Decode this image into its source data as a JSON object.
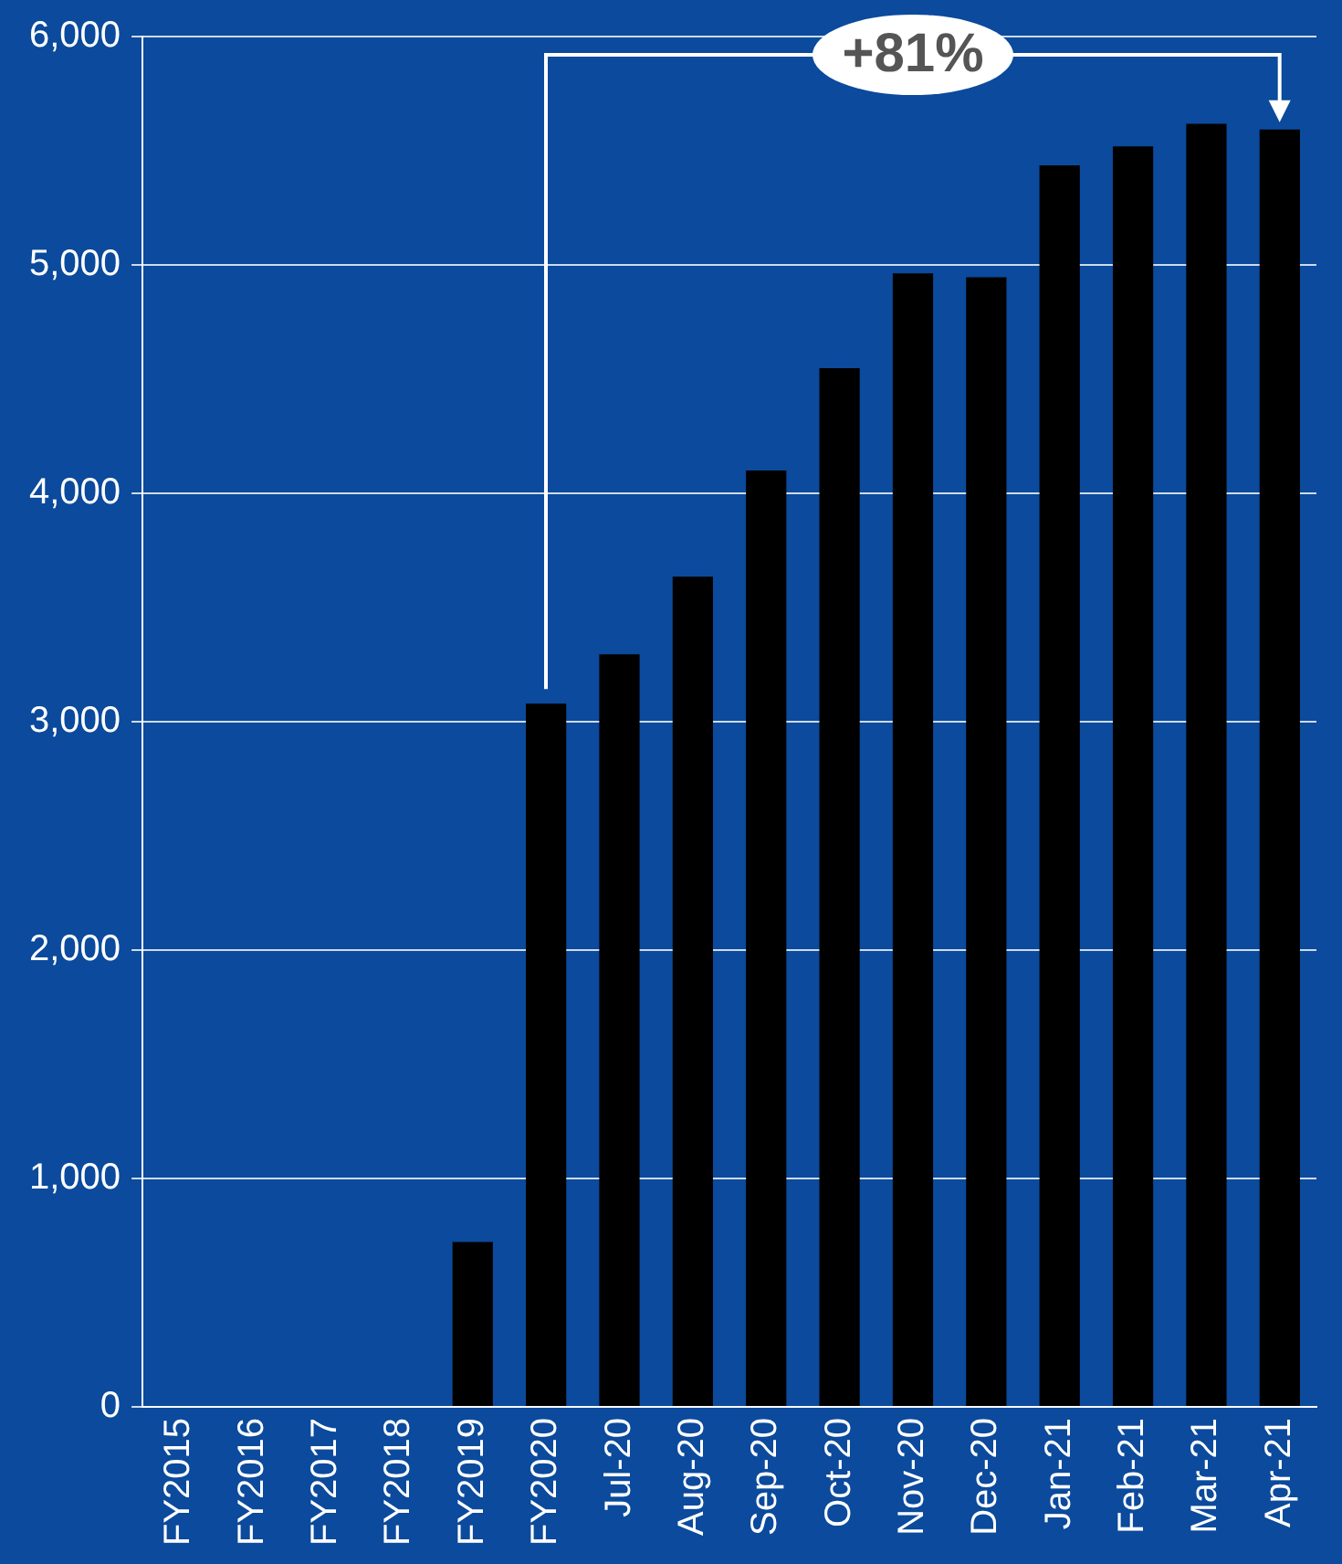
{
  "chart_data": {
    "type": "bar",
    "categories": [
      "FY2015",
      "FY2016",
      "FY2017",
      "FY2018",
      "FY2019",
      "FY2020",
      "Jul-20",
      "Aug-20",
      "Sep-20",
      "Oct-20",
      "Nov-20",
      "Dec-20",
      "Jan-21",
      "Feb-21",
      "Mar-21",
      "Apr-21"
    ],
    "values": [
      0,
      0,
      0,
      0,
      722,
      3079,
      3295,
      3635,
      4100,
      4548,
      4963,
      4946,
      5436,
      5519,
      5618,
      5593
    ],
    "color": "#000000",
    "ylim": [
      0,
      6000
    ],
    "yticks": [
      {
        "value": 0,
        "label": "0"
      },
      {
        "value": 1000,
        "label": "1,000"
      },
      {
        "value": 2000,
        "label": "2,000"
      },
      {
        "value": 3000,
        "label": "3,000"
      },
      {
        "value": 4000,
        "label": "4,000"
      },
      {
        "value": 5000,
        "label": "5,000"
      },
      {
        "value": 6000,
        "label": "6,000"
      }
    ],
    "grid": "y",
    "legend": false,
    "annotations": [
      "+81%"
    ]
  }
}
